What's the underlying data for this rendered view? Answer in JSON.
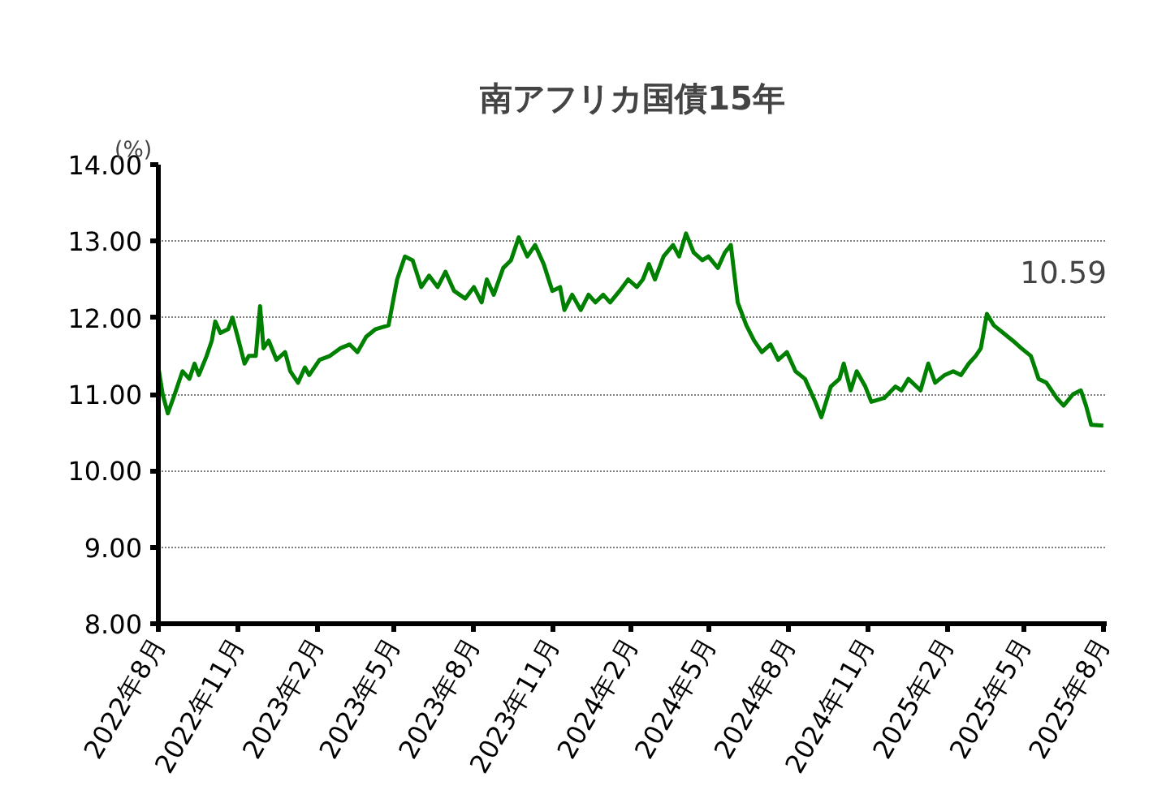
{
  "chart_data": {
    "type": "line",
    "title": "南アフリカ国債15年",
    "ylabel": "(%)",
    "annotations": [
      "10.59"
    ],
    "x": [
      "2022-08-01",
      "2022-08-06",
      "2022-08-12",
      "2022-08-20",
      "2022-08-29",
      "2022-09-06",
      "2022-09-12",
      "2022-09-17",
      "2022-09-26",
      "2022-10-02",
      "2022-10-06",
      "2022-10-12",
      "2022-10-21",
      "2022-10-26",
      "2022-11-01",
      "2022-11-09",
      "2022-11-14",
      "2022-11-22",
      "2022-11-27",
      "2022-12-01",
      "2022-12-07",
      "2022-12-16",
      "2022-12-26",
      "2023-01-01",
      "2023-01-10",
      "2023-01-18",
      "2023-01-23",
      "2023-02-04",
      "2023-02-16",
      "2023-02-28",
      "2023-03-11",
      "2023-03-20",
      "2023-03-30",
      "2023-04-10",
      "2023-04-25",
      "2023-05-05",
      "2023-05-14",
      "2023-05-23",
      "2023-06-02",
      "2023-06-11",
      "2023-06-21",
      "2023-06-30",
      "2023-07-10",
      "2023-07-23",
      "2023-08-02",
      "2023-08-11",
      "2023-08-17",
      "2023-08-25",
      "2023-09-05",
      "2023-09-14",
      "2023-09-23",
      "2023-10-03",
      "2023-10-12",
      "2023-10-22",
      "2023-11-01",
      "2023-11-10",
      "2023-11-15",
      "2023-11-24",
      "2023-12-04",
      "2023-12-13",
      "2023-12-21",
      "2023-12-30",
      "2024-01-07",
      "2024-01-18",
      "2024-01-28",
      "2024-02-07",
      "2024-02-14",
      "2024-02-21",
      "2024-02-28",
      "2024-03-09",
      "2024-03-20",
      "2024-03-27",
      "2024-04-04",
      "2024-04-13",
      "2024-04-23",
      "2024-04-30",
      "2024-05-11",
      "2024-05-19",
      "2024-05-26",
      "2024-06-03",
      "2024-06-13",
      "2024-06-22",
      "2024-07-01",
      "2024-07-11",
      "2024-07-20",
      "2024-07-30",
      "2024-08-09",
      "2024-08-20",
      "2024-09-01",
      "2024-09-08",
      "2024-09-19",
      "2024-09-29",
      "2024-10-04",
      "2024-10-12",
      "2024-10-19",
      "2024-10-29",
      "2024-11-05",
      "2024-11-20",
      "2024-12-03",
      "2024-12-10",
      "2024-12-18",
      "2025-01-01",
      "2025-01-10",
      "2025-01-18",
      "2025-01-29",
      "2025-02-08",
      "2025-02-17",
      "2025-02-26",
      "2025-03-06",
      "2025-03-12",
      "2025-03-19",
      "2025-03-27",
      "2025-04-07",
      "2025-04-18",
      "2025-04-28",
      "2025-05-09",
      "2025-05-18",
      "2025-05-27",
      "2025-06-08",
      "2025-06-16",
      "2025-06-27",
      "2025-07-06",
      "2025-07-12",
      "2025-07-18",
      "2025-08-01"
    ],
    "series": [
      {
        "color": "#008000",
        "values": [
          11.35,
          11.0,
          10.75,
          11.0,
          11.3,
          11.2,
          11.4,
          11.25,
          11.5,
          11.7,
          11.95,
          11.8,
          11.85,
          12.0,
          11.75,
          11.4,
          11.5,
          11.5,
          12.15,
          11.6,
          11.7,
          11.45,
          11.55,
          11.3,
          11.15,
          11.35,
          11.25,
          11.45,
          11.5,
          11.6,
          11.65,
          11.55,
          11.75,
          11.85,
          11.9,
          12.5,
          12.8,
          12.75,
          12.4,
          12.55,
          12.4,
          12.6,
          12.35,
          12.25,
          12.4,
          12.2,
          12.5,
          12.3,
          12.65,
          12.75,
          13.05,
          12.8,
          12.95,
          12.7,
          12.35,
          12.4,
          12.1,
          12.3,
          12.1,
          12.3,
          12.2,
          12.3,
          12.2,
          12.35,
          12.5,
          12.4,
          12.5,
          12.7,
          12.5,
          12.8,
          12.95,
          12.8,
          13.1,
          12.85,
          12.75,
          12.8,
          12.65,
          12.85,
          12.95,
          12.2,
          11.9,
          11.7,
          11.55,
          11.65,
          11.45,
          11.55,
          11.3,
          11.2,
          10.9,
          10.7,
          11.1,
          11.2,
          11.4,
          11.05,
          11.3,
          11.1,
          10.9,
          10.95,
          11.1,
          11.05,
          11.2,
          11.05,
          11.4,
          11.15,
          11.25,
          11.3,
          11.25,
          11.4,
          11.5,
          11.6,
          12.05,
          11.9,
          11.8,
          11.7,
          11.6,
          11.5,
          11.2,
          11.15,
          10.95,
          10.85,
          11.0,
          11.05,
          10.85,
          10.6,
          10.59
        ]
      }
    ],
    "xlim": [
      "2022-08-01",
      "2025-08-05"
    ],
    "xticks": [
      {
        "value": "2022-08-01",
        "label": "2022年8月"
      },
      {
        "value": "2022-11-01",
        "label": "2022年11月"
      },
      {
        "value": "2023-02-01",
        "label": "2023年2月"
      },
      {
        "value": "2023-05-01",
        "label": "2023年5月"
      },
      {
        "value": "2023-08-01",
        "label": "2023年8月"
      },
      {
        "value": "2023-11-01",
        "label": "2023年11月"
      },
      {
        "value": "2024-02-01",
        "label": "2024年2月"
      },
      {
        "value": "2024-05-01",
        "label": "2024年5月"
      },
      {
        "value": "2024-08-01",
        "label": "2024年8月"
      },
      {
        "value": "2024-11-01",
        "label": "2024年11月"
      },
      {
        "value": "2025-02-01",
        "label": "2025年2月"
      },
      {
        "value": "2025-05-01",
        "label": "2025年5月"
      },
      {
        "value": "2025-08-01",
        "label": "2025年8月"
      }
    ],
    "ylim": [
      8,
      14
    ],
    "yticks": [
      {
        "value": 8,
        "label": "8.00"
      },
      {
        "value": 9,
        "label": "9.00"
      },
      {
        "value": 10,
        "label": "10.00"
      },
      {
        "value": 11,
        "label": "11.00"
      },
      {
        "value": 12,
        "label": "12.00"
      },
      {
        "value": 13,
        "label": "13.00"
      },
      {
        "value": 14,
        "label": "14.00"
      }
    ],
    "grid": "y",
    "line_style": "solid"
  }
}
